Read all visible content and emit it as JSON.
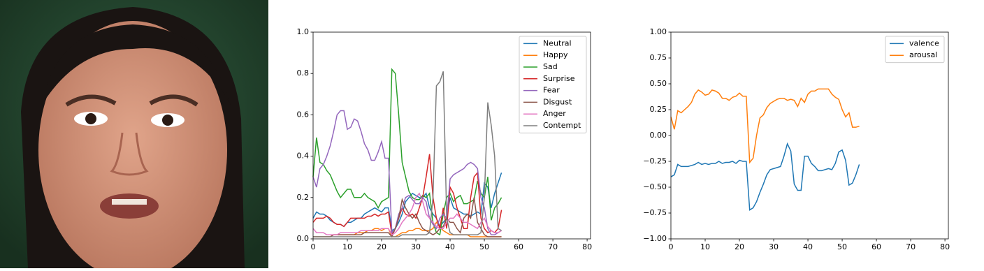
{
  "chart_data": [
    {
      "type": "line",
      "x": [
        0,
        1,
        2,
        3,
        4,
        5,
        6,
        7,
        8,
        9,
        10,
        11,
        12,
        13,
        14,
        15,
        16,
        17,
        18,
        19,
        20,
        21,
        22,
        23,
        24,
        25,
        26,
        27,
        28,
        29,
        30,
        31,
        32,
        33,
        34,
        35,
        36,
        37,
        38,
        39,
        40,
        41,
        42,
        43,
        44,
        45,
        46,
        47,
        48,
        49,
        50,
        51,
        52,
        53,
        54,
        55
      ],
      "xlim": [
        0,
        81
      ],
      "xticks": [
        0,
        10,
        20,
        30,
        40,
        50,
        60,
        70,
        80
      ],
      "ylim": [
        0,
        1
      ],
      "yticks": [
        {
          "value": 0,
          "label": "0.0"
        },
        0.2,
        0.4,
        0.6,
        0.8,
        {
          "value": 1,
          "label": "1.0"
        }
      ],
      "legend": "upper right",
      "series": [
        {
          "name": "Neutral",
          "color": "#1f77b4",
          "values": [
            0.1,
            0.13,
            0.12,
            0.12,
            0.11,
            0.09,
            0.08,
            0.07,
            0.07,
            0.06,
            0.08,
            0.08,
            0.09,
            0.1,
            0.1,
            0.12,
            0.13,
            0.14,
            0.15,
            0.14,
            0.13,
            0.15,
            0.15,
            0.04,
            0.05,
            0.08,
            0.12,
            0.18,
            0.2,
            0.22,
            0.21,
            0.2,
            0.2,
            0.22,
            0.15,
            0.12,
            0.1,
            0.06,
            0.08,
            0.1,
            0.2,
            0.15,
            0.14,
            0.13,
            0.12,
            0.12,
            0.11,
            0.12,
            0.13,
            0.12,
            0.27,
            0.25,
            0.15,
            0.22,
            0.27,
            0.32
          ]
        },
        {
          "name": "Happy",
          "color": "#ff7f0e",
          "values": [
            0.01,
            0.01,
            0.01,
            0.01,
            0.01,
            0.01,
            0.02,
            0.02,
            0.02,
            0.02,
            0.02,
            0.02,
            0.02,
            0.03,
            0.03,
            0.03,
            0.04,
            0.04,
            0.05,
            0.05,
            0.04,
            0.05,
            0.05,
            0.01,
            0.01,
            0.02,
            0.03,
            0.03,
            0.04,
            0.04,
            0.05,
            0.05,
            0.04,
            0.04,
            0.04,
            0.05,
            0.08,
            0.06,
            0.04,
            0.03,
            0.02,
            0.02,
            0.02,
            0.02,
            0.02,
            0.02,
            0.01,
            0.01,
            0.01,
            0.01,
            0.01,
            0.01,
            0.01,
            0.01,
            0.01,
            0.01
          ]
        },
        {
          "name": "Sad",
          "color": "#2ca02c",
          "values": [
            0.3,
            0.49,
            0.37,
            0.36,
            0.33,
            0.31,
            0.27,
            0.23,
            0.2,
            0.22,
            0.24,
            0.24,
            0.2,
            0.2,
            0.2,
            0.22,
            0.2,
            0.19,
            0.18,
            0.15,
            0.18,
            0.19,
            0.2,
            0.82,
            0.8,
            0.6,
            0.37,
            0.3,
            0.23,
            0.2,
            0.19,
            0.19,
            0.21,
            0.2,
            0.22,
            0.08,
            0.03,
            0.02,
            0.12,
            0.2,
            0.22,
            0.18,
            0.2,
            0.21,
            0.17,
            0.17,
            0.18,
            0.19,
            0.28,
            0.22,
            0.2,
            0.3,
            0.09,
            0.15,
            0.17,
            0.2
          ]
        },
        {
          "name": "Surprise",
          "color": "#d62728",
          "values": [
            0.08,
            0.1,
            0.1,
            0.1,
            0.11,
            0.1,
            0.08,
            0.07,
            0.07,
            0.06,
            0.08,
            0.1,
            0.1,
            0.1,
            0.1,
            0.1,
            0.11,
            0.11,
            0.12,
            0.11,
            0.12,
            0.12,
            0.13,
            0.02,
            0.05,
            0.1,
            0.15,
            0.12,
            0.11,
            0.12,
            0.1,
            0.15,
            0.2,
            0.3,
            0.41,
            0.2,
            0.1,
            0.05,
            0.15,
            0.05,
            0.25,
            0.22,
            0.15,
            0.1,
            0.05,
            0.05,
            0.2,
            0.3,
            0.32,
            0.1,
            0.05,
            0.03,
            0.04,
            0.03,
            0.05,
            0.14
          ]
        },
        {
          "name": "Fear",
          "color": "#9467bd",
          "values": [
            0.3,
            0.25,
            0.34,
            0.36,
            0.4,
            0.45,
            0.52,
            0.6,
            0.62,
            0.62,
            0.53,
            0.54,
            0.58,
            0.57,
            0.52,
            0.46,
            0.43,
            0.38,
            0.38,
            0.42,
            0.47,
            0.39,
            0.39,
            0.03,
            0.05,
            0.12,
            0.15,
            0.2,
            0.21,
            0.19,
            0.17,
            0.17,
            0.2,
            0.18,
            0.1,
            0.07,
            0.05,
            0.1,
            0.12,
            0.1,
            0.29,
            0.31,
            0.32,
            0.33,
            0.34,
            0.36,
            0.37,
            0.36,
            0.34,
            0.2,
            0.15,
            0.05,
            0.02,
            0.02,
            0.03,
            0.04
          ]
        },
        {
          "name": "Disgust",
          "color": "#8c564b",
          "values": [
            0.01,
            0.01,
            0.01,
            0.01,
            0.01,
            0.01,
            0.02,
            0.02,
            0.02,
            0.02,
            0.02,
            0.02,
            0.02,
            0.02,
            0.02,
            0.03,
            0.03,
            0.03,
            0.03,
            0.03,
            0.03,
            0.03,
            0.03,
            0.01,
            0.05,
            0.1,
            0.19,
            0.15,
            0.12,
            0.1,
            0.12,
            0.08,
            0.05,
            0.04,
            0.03,
            0.02,
            0.03,
            0.05,
            0.06,
            0.1,
            0.08,
            0.08,
            0.05,
            0.03,
            0.1,
            0.12,
            0.1,
            0.2,
            0.08,
            0.05,
            0.02,
            0.01,
            0.01,
            0.01,
            0.01,
            0.01
          ]
        },
        {
          "name": "Anger",
          "color": "#e377c2",
          "values": [
            0.05,
            0.03,
            0.03,
            0.03,
            0.02,
            0.02,
            0.02,
            0.02,
            0.03,
            0.03,
            0.03,
            0.03,
            0.03,
            0.03,
            0.04,
            0.04,
            0.04,
            0.04,
            0.04,
            0.04,
            0.05,
            0.05,
            0.05,
            0.02,
            0.03,
            0.05,
            0.08,
            0.1,
            0.12,
            0.15,
            0.2,
            0.22,
            0.18,
            0.12,
            0.1,
            0.08,
            0.06,
            0.05,
            0.05,
            0.08,
            0.1,
            0.1,
            0.12,
            0.1,
            0.08,
            0.08,
            0.07,
            0.06,
            0.05,
            0.08,
            0.1,
            0.06,
            0.04,
            0.03,
            0.03,
            0.04
          ]
        },
        {
          "name": "Contempt",
          "color": "#7f7f7f",
          "values": [
            0.01,
            0.01,
            0.01,
            0.01,
            0.01,
            0.01,
            0.01,
            0.01,
            0.01,
            0.01,
            0.01,
            0.01,
            0.01,
            0.01,
            0.01,
            0.01,
            0.01,
            0.01,
            0.01,
            0.01,
            0.01,
            0.01,
            0.01,
            0.01,
            0.01,
            0.01,
            0.02,
            0.02,
            0.02,
            0.02,
            0.02,
            0.02,
            0.02,
            0.02,
            0.03,
            0.2,
            0.74,
            0.76,
            0.81,
            0.1,
            0.03,
            0.02,
            0.02,
            0.02,
            0.02,
            0.02,
            0.02,
            0.02,
            0.02,
            0.03,
            0.2,
            0.66,
            0.55,
            0.4,
            0.05,
            0.04
          ]
        }
      ]
    },
    {
      "type": "line",
      "x": [
        0,
        1,
        2,
        3,
        4,
        5,
        6,
        7,
        8,
        9,
        10,
        11,
        12,
        13,
        14,
        15,
        16,
        17,
        18,
        19,
        20,
        21,
        22,
        23,
        24,
        25,
        26,
        27,
        28,
        29,
        30,
        31,
        32,
        33,
        34,
        35,
        36,
        37,
        38,
        39,
        40,
        41,
        42,
        43,
        44,
        45,
        46,
        47,
        48,
        49,
        50,
        51,
        52,
        53,
        54,
        55
      ],
      "xlim": [
        0,
        81
      ],
      "xticks": [
        0,
        10,
        20,
        30,
        40,
        50,
        60,
        70,
        80
      ],
      "ylim": [
        -1,
        1
      ],
      "yticks": [
        {
          "value": -1,
          "label": "−1.00"
        },
        {
          "value": -0.75,
          "label": "−0.75"
        },
        {
          "value": -0.5,
          "label": "−0.50"
        },
        {
          "value": -0.25,
          "label": "−0.25"
        },
        {
          "value": 0,
          "label": "0.00"
        },
        {
          "value": 0.25,
          "label": "0.25"
        },
        {
          "value": 0.5,
          "label": "0.50"
        },
        {
          "value": 0.75,
          "label": "0.75"
        },
        {
          "value": 1,
          "label": "1.00"
        }
      ],
      "legend": "upper right",
      "series": [
        {
          "name": "valence",
          "color": "#1f77b4",
          "values": [
            -0.4,
            -0.38,
            -0.28,
            -0.3,
            -0.3,
            -0.3,
            -0.29,
            -0.28,
            -0.26,
            -0.28,
            -0.27,
            -0.28,
            -0.27,
            -0.27,
            -0.25,
            -0.27,
            -0.26,
            -0.26,
            -0.25,
            -0.27,
            -0.24,
            -0.25,
            -0.25,
            -0.72,
            -0.7,
            -0.64,
            -0.55,
            -0.47,
            -0.38,
            -0.33,
            -0.32,
            -0.31,
            -0.3,
            -0.2,
            -0.08,
            -0.15,
            -0.47,
            -0.53,
            -0.53,
            -0.2,
            -0.2,
            -0.27,
            -0.3,
            -0.34,
            -0.34,
            -0.33,
            -0.32,
            -0.33,
            -0.27,
            -0.16,
            -0.14,
            -0.24,
            -0.48,
            -0.46,
            -0.38,
            -0.28
          ]
        },
        {
          "name": "arousal",
          "color": "#ff7f0e",
          "values": [
            0.18,
            0.06,
            0.24,
            0.22,
            0.25,
            0.28,
            0.32,
            0.4,
            0.44,
            0.42,
            0.39,
            0.4,
            0.44,
            0.43,
            0.41,
            0.36,
            0.36,
            0.34,
            0.37,
            0.38,
            0.41,
            0.38,
            0.38,
            -0.26,
            -0.22,
            0,
            0.17,
            0.2,
            0.27,
            0.31,
            0.33,
            0.35,
            0.36,
            0.36,
            0.34,
            0.35,
            0.34,
            0.28,
            0.36,
            0.32,
            0.4,
            0.43,
            0.43,
            0.45,
            0.45,
            0.45,
            0.45,
            0.4,
            0.37,
            0.35,
            0.25,
            0.18,
            0.22,
            0.08,
            0.08,
            0.09
          ]
        }
      ]
    }
  ]
}
